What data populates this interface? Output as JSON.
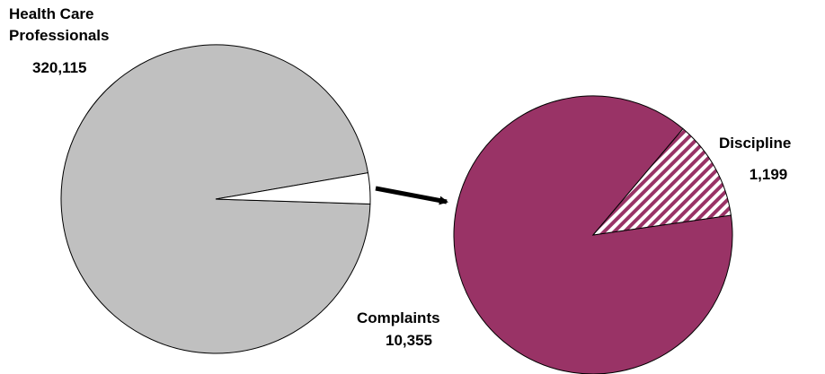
{
  "chart_data": {
    "type": "pie-of-pie",
    "series": [
      {
        "name": "Health Care Professionals",
        "value": 320115,
        "value_label": "320,115",
        "color": "#c0c0c0"
      },
      {
        "name": "Complaints",
        "value": 10355,
        "value_label": "10,355",
        "color": "#993366"
      },
      {
        "name": "Discipline",
        "value": 1199,
        "value_label": "1,199",
        "color": "#993366",
        "pattern": "hatch"
      }
    ]
  }
}
